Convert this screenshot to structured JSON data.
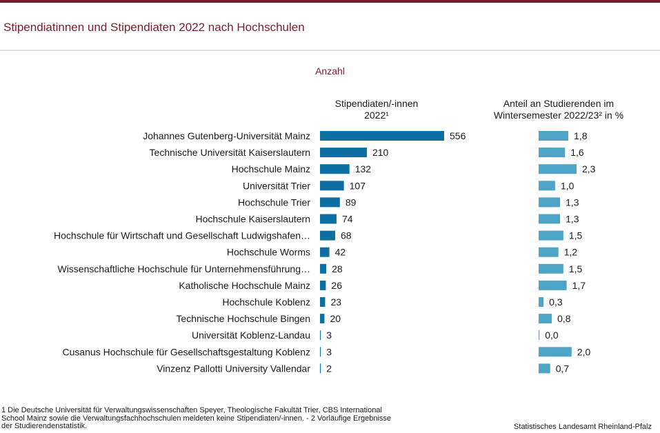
{
  "title": "Stipendiatinnen und Stipendiaten 2022 nach Hochschulen",
  "subtitle": "Anzahl",
  "colors": {
    "accent": "#7b1c2e",
    "bar_left": "#0e6fa2",
    "bar_right": "#4ea4c6"
  },
  "chart_data": {
    "type": "bar",
    "orientation": "horizontal",
    "title": "Stipendiatinnen und Stipendiaten 2022 nach Hochschulen",
    "categories": [
      "Johannes Gutenberg-Universität Mainz",
      "Technische Universität Kaiserslautern",
      "Hochschule Mainz",
      "Universität Trier",
      "Hochschule Trier",
      "Hochschule Kaiserslautern",
      "Hochschule für Wirtschaft und Gesellschaft Ludwigshafen…",
      "Hochschule Worms",
      "Wissenschaftliche Hochschule für Unternehmensführung…",
      "Katholische Hochschule Mainz",
      "Hochschule Koblenz",
      "Technische Hochschule Bingen",
      "Universität Koblenz-Landau",
      "Cusanus Hochschule für Gesellschaftsgestaltung Koblenz",
      "Vinzenz Pallotti University Vallendar"
    ],
    "series": [
      {
        "name": "Stipendiaten/-innen 2022¹",
        "header_lines": [
          "Stipendiaten/-innen",
          "2022¹"
        ],
        "values": [
          556,
          210,
          132,
          107,
          89,
          74,
          68,
          42,
          28,
          26,
          23,
          20,
          3,
          3,
          2
        ],
        "labels": [
          "556",
          "210",
          "132",
          "107",
          "89",
          "74",
          "68",
          "42",
          "28",
          "26",
          "23",
          "20",
          "3",
          "3",
          "2"
        ],
        "xlim": [
          0,
          556
        ]
      },
      {
        "name": "Anteil an Studierenden im Wintersemester 2022/23² in %",
        "header_lines": [
          "Anteil an Studierenden im",
          "Wintersemester 2022/23² in %"
        ],
        "values": [
          1.8,
          1.6,
          2.3,
          1.0,
          1.3,
          1.3,
          1.5,
          1.2,
          1.5,
          1.7,
          0.3,
          0.8,
          0.0,
          2.0,
          0.7
        ],
        "labels": [
          "1,8",
          "1,6",
          "2,3",
          "1,0",
          "1,3",
          "1,3",
          "1,5",
          "1,2",
          "1,5",
          "1,7",
          "0,3",
          "0,8",
          "0,0",
          "2,0",
          "0,7"
        ],
        "xlim": [
          0,
          2.3
        ]
      }
    ]
  },
  "footnote": "1 Die Deutsche Universität für Verwaltungswissenschaften  Speyer, Theologische  Fakultät Trier, CBS International  School Mainz sowie die Verwaltungsfachhochschulen  meldeten keine Stipendiaten/-innen.  - 2 Vorläufige Ergebnisse der Studierendenstatistik.",
  "source": "Statistisches Landesamt  Rheinland-Pfalz"
}
